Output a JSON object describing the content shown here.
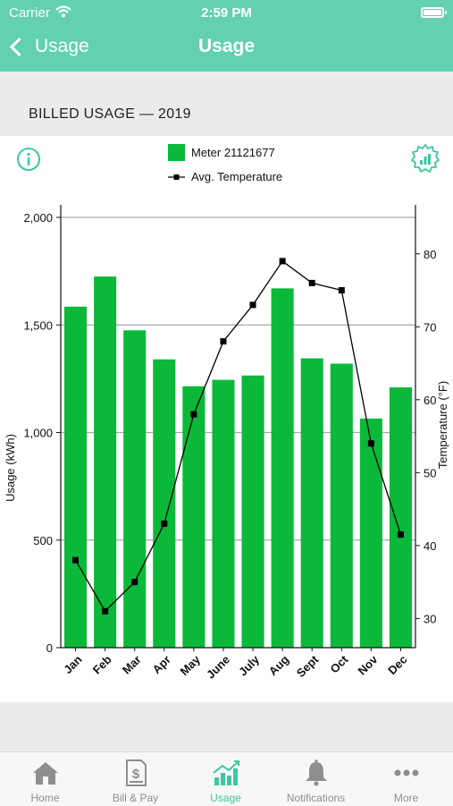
{
  "status": {
    "carrier": "Carrier",
    "time": "2:59 PM"
  },
  "nav": {
    "back_label": "Usage",
    "title": "Usage"
  },
  "section_title": "BILLED USAGE — 2019",
  "colors": {
    "accent": "#63d0b0",
    "bar": "#0ab93a",
    "line": "#000000",
    "tab_active": "#3cc8a0"
  },
  "icons": {
    "info": "info-icon",
    "settings": "chart-settings-icon"
  },
  "chart_data": {
    "type": "bar",
    "legend_placement": "top-center",
    "categories": [
      "Jan",
      "Feb",
      "Mar",
      "Apr",
      "May",
      "June",
      "July",
      "Aug",
      "Sept",
      "Oct",
      "Nov",
      "Dec"
    ],
    "series": [
      {
        "name": "Meter 21121677",
        "type": "bar",
        "axis": "left",
        "values": [
          1585,
          1725,
          1475,
          1340,
          1215,
          1245,
          1265,
          1670,
          1345,
          1320,
          1065,
          1210
        ]
      },
      {
        "name": "Avg. Temperature",
        "type": "line",
        "axis": "right",
        "values": [
          38,
          31,
          35,
          43,
          58,
          68,
          73,
          79,
          76,
          75,
          54,
          41.5
        ]
      }
    ],
    "ylabel": "Usage (kWh)",
    "y2label": "Temperature (°F)",
    "ylim": [
      0,
      2000
    ],
    "yticks": [
      0,
      500,
      1000,
      1500,
      2000
    ],
    "ytick_labels": [
      "0",
      "500",
      "1,000",
      "1,500",
      "2,000"
    ],
    "y2lim": [
      26,
      85
    ],
    "y2ticks": [
      30,
      40,
      50,
      60,
      70,
      80
    ],
    "grid": true
  },
  "tabs": [
    {
      "label": "Home",
      "icon": "home-icon",
      "active": false
    },
    {
      "label": "Bill & Pay",
      "icon": "bill-icon",
      "active": false
    },
    {
      "label": "Usage",
      "icon": "usage-chart-icon",
      "active": true
    },
    {
      "label": "Notifications",
      "icon": "bell-icon",
      "active": false
    },
    {
      "label": "More",
      "icon": "more-icon",
      "active": false
    }
  ]
}
